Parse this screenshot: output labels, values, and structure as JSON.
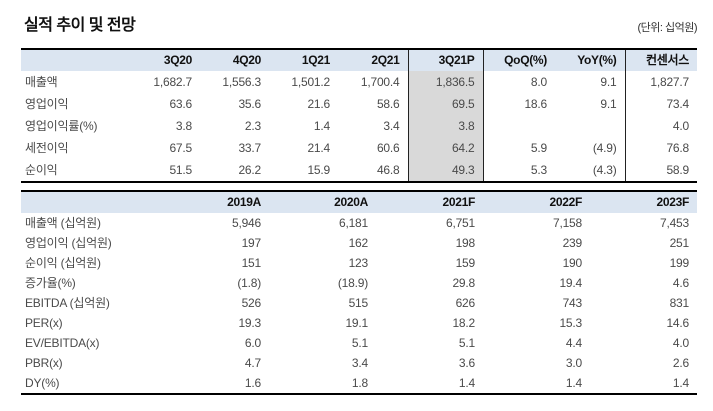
{
  "header": {
    "title": "실적 추이 및 전망",
    "unit_note": "(단위: 십억원)"
  },
  "quarterly_table": {
    "columns": [
      "",
      "3Q20",
      "4Q20",
      "1Q21",
      "2Q21",
      "3Q21P",
      "QoQ(%)",
      "YoY(%)",
      "컨센서스"
    ],
    "rows": [
      [
        "매출액",
        "1,682.7",
        "1,556.3",
        "1,501.2",
        "1,700.4",
        "1,836.5",
        "8.0",
        "9.1",
        "1,827.7"
      ],
      [
        "영업이익",
        "63.6",
        "35.6",
        "21.6",
        "58.6",
        "69.5",
        "18.6",
        "9.1",
        "73.4"
      ],
      [
        "영업이익률(%)",
        "3.8",
        "2.3",
        "1.4",
        "3.4",
        "3.8",
        "",
        "",
        "4.0"
      ],
      [
        "세전이익",
        "67.5",
        "33.7",
        "21.4",
        "60.6",
        "64.2",
        "5.9",
        "(4.9)",
        "76.8"
      ],
      [
        "순이익",
        "51.5",
        "26.2",
        "15.9",
        "46.8",
        "49.3",
        "5.3",
        "(4.3)",
        "58.9"
      ]
    ],
    "highlight_column": "3Q21P",
    "colors": {
      "header_bg": "#dbe5f1",
      "highlight_bg": "#d9d9d9",
      "rule": "#000000"
    }
  },
  "annual_table": {
    "columns": [
      "",
      "2019A",
      "2020A",
      "2021F",
      "2022F",
      "2023F"
    ],
    "rows": [
      [
        "매출액 (십억원)",
        "5,946",
        "6,181",
        "6,751",
        "7,158",
        "7,453"
      ],
      [
        "영업이익 (십억원)",
        "197",
        "162",
        "198",
        "239",
        "251"
      ],
      [
        "순이익 (십억원)",
        "151",
        "123",
        "159",
        "190",
        "199"
      ],
      [
        "증가율(%)",
        "(1.8)",
        "(18.9)",
        "29.8",
        "19.4",
        "4.6"
      ],
      [
        "EBITDA (십억원)",
        "526",
        "515",
        "626",
        "743",
        "831"
      ],
      [
        "PER(x)",
        "19.3",
        "19.1",
        "18.2",
        "15.3",
        "14.6"
      ],
      [
        "EV/EBITDA(x)",
        "6.0",
        "5.1",
        "5.1",
        "4.4",
        "4.0"
      ],
      [
        "PBR(x)",
        "4.7",
        "3.4",
        "3.6",
        "3.0",
        "2.6"
      ],
      [
        "DY(%)",
        "1.6",
        "1.8",
        "1.4",
        "1.4",
        "1.4"
      ]
    ],
    "colors": {
      "header_bg": "#dbe5f1",
      "rule": "#000000"
    }
  }
}
